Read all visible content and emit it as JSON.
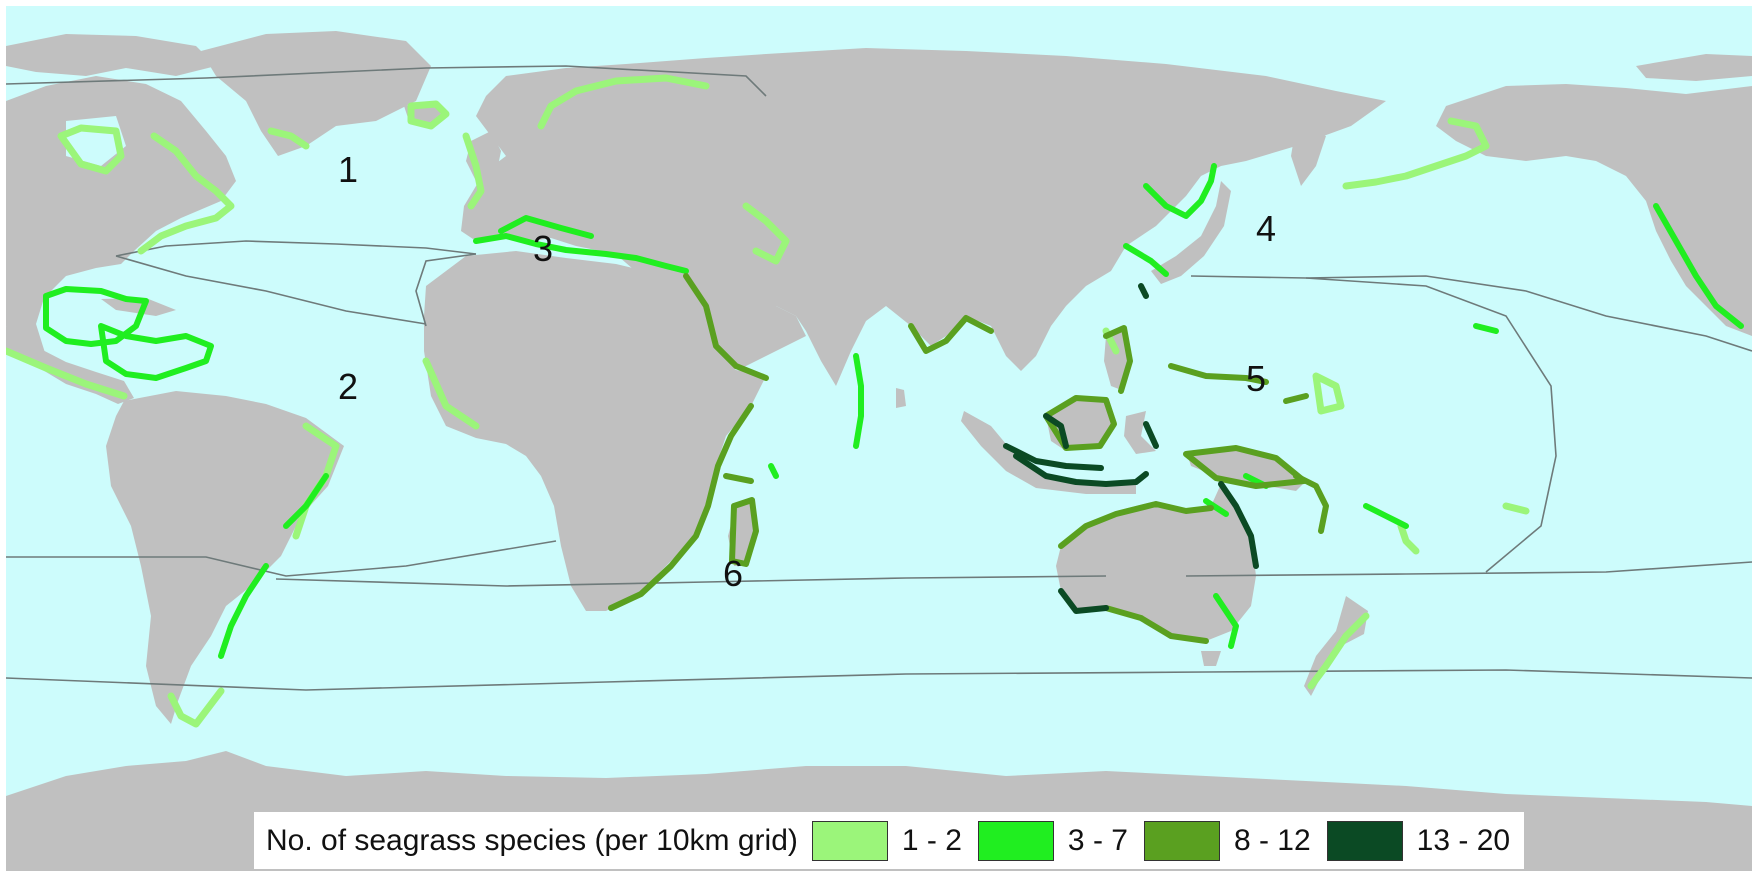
{
  "colors": {
    "ocean": "#cdfcfc",
    "land": "#c0c0c0",
    "boundary": "#6e7a7a",
    "class_1_2": "#9bf57a",
    "class_3_7": "#20ee20",
    "class_8_12": "#5aa020",
    "class_13_20": "#0b4a24"
  },
  "region_labels": [
    "1",
    "2",
    "3",
    "4",
    "5",
    "6"
  ],
  "legend": {
    "title": "No. of seagrass species (per 10km grid)",
    "items": [
      {
        "label": "1 - 2",
        "color": "#9bf57a"
      },
      {
        "label": "3 - 7",
        "color": "#20ee20"
      },
      {
        "label": "8 - 12",
        "color": "#5aa020"
      },
      {
        "label": "13 - 20",
        "color": "#0b4a24"
      }
    ]
  }
}
